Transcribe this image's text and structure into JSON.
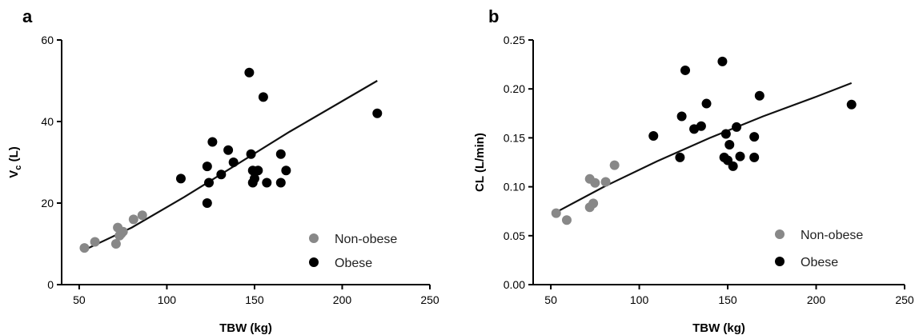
{
  "chart_data": [
    {
      "type": "scatter",
      "panel_label": "a",
      "xlabel": "TBW (kg)",
      "ylabel_main": "V",
      "ylabel_sub": "c",
      "ylabel_rest": " (L)",
      "xlim": [
        40,
        250
      ],
      "ylim": [
        0,
        60
      ],
      "xticks": [
        "50",
        "100",
        "150",
        "200",
        "250"
      ],
      "xtick_values": [
        50,
        100,
        150,
        200,
        250
      ],
      "yticks": [
        "0",
        "20",
        "40",
        "60"
      ],
      "ytick_values": [
        0,
        20,
        40,
        60
      ],
      "legend_placement": "bottom-right",
      "series": [
        {
          "name": "Non-obese",
          "color": "#888888",
          "points": [
            [
              53,
              9
            ],
            [
              59,
              10.5
            ],
            [
              71,
              10
            ],
            [
              72,
              14
            ],
            [
              73,
              12
            ],
            [
              74,
              12.5
            ],
            [
              75,
              13
            ],
            [
              81,
              16
            ],
            [
              86,
              17
            ]
          ]
        },
        {
          "name": "Obese",
          "color": "#000000",
          "points": [
            [
              108,
              26
            ],
            [
              123,
              20
            ],
            [
              123,
              29
            ],
            [
              124,
              25
            ],
            [
              126,
              35
            ],
            [
              131,
              27
            ],
            [
              135,
              33
            ],
            [
              138,
              30
            ],
            [
              147,
              52
            ],
            [
              148,
              32
            ],
            [
              149,
              28
            ],
            [
              149,
              25
            ],
            [
              150,
              26
            ],
            [
              152,
              28
            ],
            [
              155,
              46
            ],
            [
              157,
              25
            ],
            [
              165,
              25
            ],
            [
              165,
              32
            ],
            [
              168,
              28
            ],
            [
              220,
              42
            ]
          ]
        }
      ],
      "fit_line": {
        "color": "#111111",
        "points": [
          [
            53,
            8.5
          ],
          [
            80,
            14
          ],
          [
            110,
            21.5
          ],
          [
            140,
            29.5
          ],
          [
            170,
            37.5
          ],
          [
            200,
            45
          ],
          [
            220,
            50
          ]
        ]
      }
    },
    {
      "type": "scatter",
      "panel_label": "b",
      "xlabel": "TBW (kg)",
      "ylabel_main": "CL (L/min)",
      "ylabel_sub": "",
      "ylabel_rest": "",
      "xlim": [
        40,
        250
      ],
      "ylim": [
        0,
        0.25
      ],
      "xticks": [
        "50",
        "100",
        "150",
        "200",
        "250"
      ],
      "xtick_values": [
        50,
        100,
        150,
        200,
        250
      ],
      "yticks": [
        "0.00",
        "0.05",
        "0.10",
        "0.15",
        "0.20",
        "0.25"
      ],
      "ytick_values": [
        0,
        0.05,
        0.1,
        0.15,
        0.2,
        0.25
      ],
      "legend_placement": "bottom-right",
      "series": [
        {
          "name": "Non-obese",
          "color": "#888888",
          "points": [
            [
              53,
              0.073
            ],
            [
              59,
              0.066
            ],
            [
              72,
              0.079
            ],
            [
              72,
              0.108
            ],
            [
              74,
              0.083
            ],
            [
              75,
              0.104
            ],
            [
              81,
              0.105
            ],
            [
              86,
              0.122
            ]
          ]
        },
        {
          "name": "Obese",
          "color": "#000000",
          "points": [
            [
              108,
              0.152
            ],
            [
              123,
              0.13
            ],
            [
              124,
              0.172
            ],
            [
              126,
              0.219
            ],
            [
              131,
              0.159
            ],
            [
              135,
              0.162
            ],
            [
              138,
              0.185
            ],
            [
              147,
              0.228
            ],
            [
              148,
              0.13
            ],
            [
              149,
              0.154
            ],
            [
              150,
              0.127
            ],
            [
              151,
              0.143
            ],
            [
              153,
              0.121
            ],
            [
              155,
              0.161
            ],
            [
              157,
              0.131
            ],
            [
              165,
              0.13
            ],
            [
              165,
              0.151
            ],
            [
              168,
              0.193
            ],
            [
              220,
              0.184
            ]
          ]
        }
      ],
      "fit_line": {
        "color": "#111111",
        "points": [
          [
            53,
            0.074
          ],
          [
            80,
            0.1
          ],
          [
            110,
            0.126
          ],
          [
            140,
            0.15
          ],
          [
            170,
            0.172
          ],
          [
            200,
            0.192
          ],
          [
            220,
            0.206
          ]
        ]
      }
    }
  ]
}
